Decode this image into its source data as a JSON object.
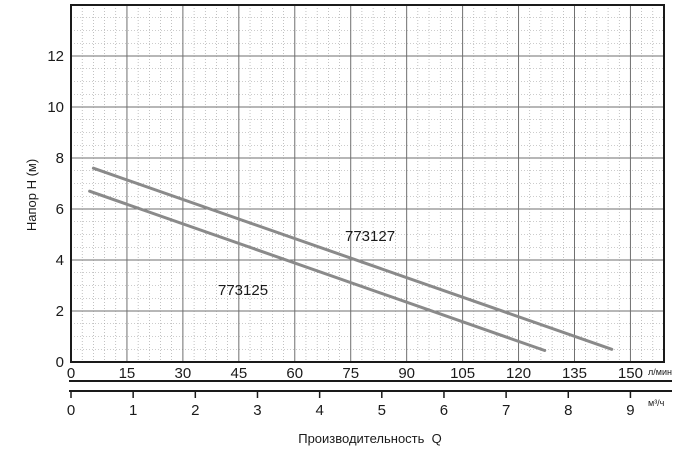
{
  "chart_data": {
    "type": "line",
    "title": "",
    "ylabel": "Напор H (м)",
    "xlabel": "Производительность  Q",
    "ylim": [
      0,
      14
    ],
    "xlim": [
      0,
      159
    ],
    "y_ticks": [
      "0",
      "2",
      "4",
      "6",
      "8",
      "10",
      "12"
    ],
    "x_ticks": [
      "0",
      "15",
      "30",
      "45",
      "60",
      "75",
      "90",
      "105",
      "120",
      "135",
      "150"
    ],
    "x_unit": "л/мин",
    "x2_ticks": [
      "0",
      "1",
      "2",
      "3",
      "4",
      "5",
      "6",
      "7",
      "8",
      "9"
    ],
    "x2_unit": "м³/ч",
    "grid": true,
    "series": [
      {
        "name": "773127",
        "x": [
          6,
          145
        ],
        "y": [
          7.6,
          0.5
        ],
        "color": "#8a8a8a"
      },
      {
        "name": "773125",
        "x": [
          5,
          127
        ],
        "y": [
          6.7,
          0.45
        ],
        "color": "#8a8a8a"
      }
    ]
  }
}
